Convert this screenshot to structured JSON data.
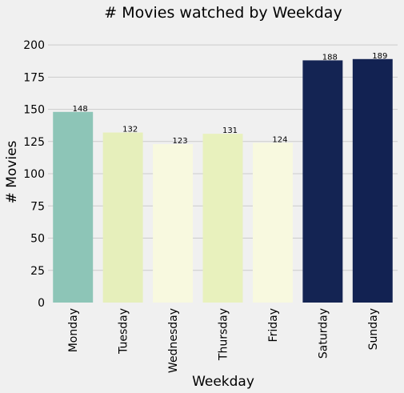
{
  "chart_data": {
    "type": "bar",
    "title": "# Movies watched by Weekday",
    "xlabel": "Weekday",
    "ylabel": "# Movies",
    "categories": [
      "Monday",
      "Tuesday",
      "Wednesday",
      "Thursday",
      "Friday",
      "Saturday",
      "Sunday"
    ],
    "values": [
      148,
      132,
      123,
      131,
      124,
      188,
      189
    ],
    "colors": [
      "#8dc5b7",
      "#e6efbb",
      "#f8f9df",
      "#e8f1bd",
      "#f8f9df",
      "#142453",
      "#122252"
    ],
    "ylim": [
      0,
      210
    ],
    "yticks": [
      0,
      25,
      50,
      75,
      100,
      125,
      150,
      175,
      200
    ],
    "grid": true,
    "legend": "none"
  }
}
